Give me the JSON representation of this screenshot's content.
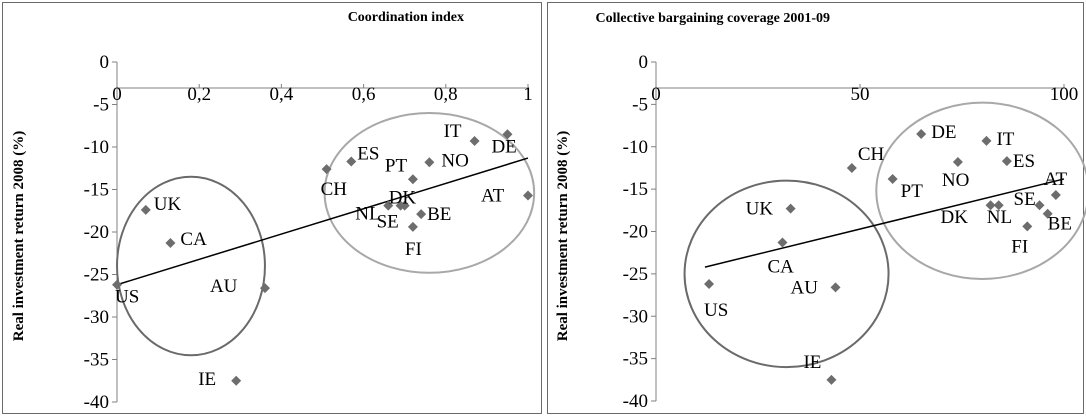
{
  "chart_data": [
    {
      "type": "scatter",
      "title": "Coordination index",
      "xlabel": "",
      "ylabel": "Real investment return 2008 (%)",
      "xlim": [
        0,
        1
      ],
      "ylim": [
        -40,
        0
      ],
      "x_ticks": [
        "0",
        "0,2",
        "0,4",
        "0,6",
        "0,8",
        "1"
      ],
      "x_tick_values": [
        0,
        0.2,
        0.4,
        0.6,
        0.8,
        1
      ],
      "y_ticks": [
        "0",
        "-5",
        "-10",
        "-15",
        "-20",
        "-25",
        "-30",
        "-35",
        "-40"
      ],
      "y_tick_values": [
        0,
        -5,
        -10,
        -15,
        -20,
        -25,
        -30,
        -35,
        -40
      ],
      "x_axis_position": "top",
      "grid": false,
      "marker_color": "#6d6d6d",
      "trendline": {
        "x": [
          0,
          1
        ],
        "y": [
          -26.2,
          -11.3
        ]
      },
      "circles": [
        {
          "cx": 0.18,
          "cy": -24.0,
          "rx": 0.18,
          "ry": 10.5
        },
        {
          "cx": 0.76,
          "cy": -15.4,
          "rx": 0.255,
          "ry": 9.4
        }
      ],
      "points": [
        {
          "label": "US",
          "x": 0.0,
          "y": -26.2
        },
        {
          "label": "UK",
          "x": 0.07,
          "y": -17.4
        },
        {
          "label": "CA",
          "x": 0.13,
          "y": -21.3
        },
        {
          "label": "AU",
          "x": 0.36,
          "y": -26.6
        },
        {
          "label": "IE",
          "x": 0.29,
          "y": -37.5
        },
        {
          "label": "CH",
          "x": 0.51,
          "y": -12.6
        },
        {
          "label": "ES",
          "x": 0.57,
          "y": -11.7
        },
        {
          "label": "NL",
          "x": 0.66,
          "y": -16.9
        },
        {
          "label": "SE",
          "x": 0.69,
          "y": -16.9
        },
        {
          "label": "DK",
          "x": 0.7,
          "y": -16.9
        },
        {
          "label": "PT",
          "x": 0.72,
          "y": -13.8
        },
        {
          "label": "FI",
          "x": 0.72,
          "y": -19.4
        },
        {
          "label": "BE",
          "x": 0.74,
          "y": -17.9
        },
        {
          "label": "NO",
          "x": 0.76,
          "y": -11.8
        },
        {
          "label": "IT",
          "x": 0.87,
          "y": -9.3
        },
        {
          "label": "DE",
          "x": 0.95,
          "y": -8.5
        },
        {
          "label": "AT",
          "x": 1.0,
          "y": -15.7
        }
      ]
    },
    {
      "type": "scatter",
      "title": "Collective bargaining coverage 2001-09",
      "xlabel": "",
      "ylabel": "Real investment return 2008 (%)",
      "xlim": [
        0,
        100
      ],
      "ylim": [
        -40,
        0
      ],
      "x_ticks": [
        "0",
        "50",
        "100"
      ],
      "x_tick_values": [
        0,
        50,
        100
      ],
      "y_ticks": [
        "0",
        "-5",
        "-10",
        "-15",
        "-20",
        "-25",
        "-30",
        "-35",
        "-40"
      ],
      "y_tick_values": [
        0,
        -5,
        -10,
        -15,
        -20,
        -25,
        -30,
        -35,
        -40
      ],
      "x_axis_position": "top",
      "grid": false,
      "marker_color": "#6d6d6d",
      "trendline": {
        "x": [
          12,
          100
        ],
        "y": [
          -24.2,
          -13.8
        ]
      },
      "circles": [
        {
          "cx": 32,
          "cy": -25.0,
          "rx": 25,
          "ry": 11.0
        },
        {
          "cx": 80,
          "cy": -15.2,
          "rx": 26,
          "ry": 10.4
        }
      ],
      "points": [
        {
          "label": "US",
          "x": 13,
          "y": -26.2
        },
        {
          "label": "UK",
          "x": 33,
          "y": -17.3
        },
        {
          "label": "CA",
          "x": 31,
          "y": -21.3
        },
        {
          "label": "AU",
          "x": 44,
          "y": -26.6
        },
        {
          "label": "IE",
          "x": 43,
          "y": -37.5
        },
        {
          "label": "CH",
          "x": 48,
          "y": -12.5
        },
        {
          "label": "PT",
          "x": 58,
          "y": -13.8
        },
        {
          "label": "DE",
          "x": 65,
          "y": -8.5
        },
        {
          "label": "NO",
          "x": 74,
          "y": -11.8
        },
        {
          "label": "IT",
          "x": 81,
          "y": -9.3
        },
        {
          "label": "DK",
          "x": 82,
          "y": -16.9
        },
        {
          "label": "NL",
          "x": 84,
          "y": -16.9
        },
        {
          "label": "ES",
          "x": 86,
          "y": -11.7
        },
        {
          "label": "FI",
          "x": 91,
          "y": -19.4
        },
        {
          "label": "SE",
          "x": 94,
          "y": -16.9
        },
        {
          "label": "BE",
          "x": 96,
          "y": -17.9
        },
        {
          "label": "AT",
          "x": 98,
          "y": -15.7
        }
      ]
    }
  ]
}
